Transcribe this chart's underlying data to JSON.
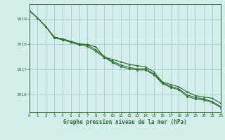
{
  "title": "Graphe pression niveau de la mer (hPa)",
  "background_color": "#d4eeee",
  "grid_color": "#aacccc",
  "line_color": "#2d6e2d",
  "xlim": [
    0,
    23
  ],
  "ylim": [
    1015.3,
    1019.6
  ],
  "yticks": [
    1016,
    1017,
    1018,
    1019
  ],
  "xticks": [
    0,
    1,
    2,
    3,
    4,
    5,
    6,
    7,
    8,
    9,
    10,
    11,
    12,
    13,
    14,
    15,
    16,
    17,
    18,
    19,
    20,
    21,
    22,
    23
  ],
  "series": [
    [
      1019.35,
      1019.05,
      1018.7,
      1018.3,
      1018.2,
      1018.1,
      1018.0,
      1018.0,
      1017.9,
      1017.5,
      1017.4,
      1017.3,
      1017.2,
      1017.15,
      1017.1,
      1016.9,
      1016.5,
      1016.4,
      1016.3,
      1016.1,
      1015.95,
      1015.9,
      1015.85,
      1015.65
    ],
    [
      1019.35,
      1019.05,
      1018.72,
      1018.28,
      1018.22,
      1018.12,
      1018.02,
      1017.98,
      1017.78,
      1017.52,
      1017.32,
      1017.18,
      1017.08,
      1017.02,
      1017.02,
      1016.82,
      1016.48,
      1016.32,
      1016.22,
      1015.98,
      1015.88,
      1015.82,
      1015.72,
      1015.52
    ],
    [
      1019.35,
      1019.05,
      1018.7,
      1018.25,
      1018.18,
      1018.08,
      1017.98,
      1017.92,
      1017.72,
      1017.48,
      1017.28,
      1017.12,
      1017.02,
      1016.98,
      1016.98,
      1016.78,
      1016.44,
      1016.28,
      1016.18,
      1015.92,
      1015.82,
      1015.78,
      1015.68,
      1015.48
    ]
  ]
}
